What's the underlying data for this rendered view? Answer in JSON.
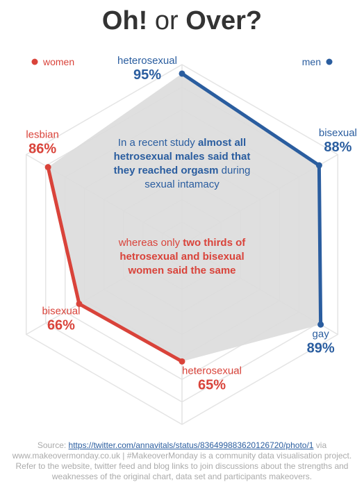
{
  "chart_data": {
    "type": "radar",
    "title": [
      "Oh!",
      "or",
      "Over?"
    ],
    "rlim": [
      0,
      100
    ],
    "rticks": [
      12.5,
      25,
      37.5,
      50,
      62.5,
      75,
      87.5,
      100
    ],
    "grid": true,
    "fill_color": "#dcdcdc",
    "series": [
      {
        "name": "men",
        "color": "#2a5d9f",
        "categories": [
          "heterosexual",
          "bisexual",
          "gay"
        ],
        "values": [
          95,
          88,
          89
        ],
        "value_labels": [
          "95%",
          "88%",
          "89%"
        ]
      },
      {
        "name": "women",
        "color": "#d9433a",
        "categories": [
          "heterosexual",
          "bisexual",
          "lesbian"
        ],
        "values": [
          65,
          66,
          86
        ],
        "value_labels": [
          "65%",
          "66%",
          "86%"
        ]
      }
    ],
    "annotations": [
      {
        "parts": [
          "In a recent study ",
          "almost all hetrosexual males said that they reached orgasm",
          " during sexual intamacy"
        ],
        "color": "#2a5d9f"
      },
      {
        "parts": [
          "whereas only ",
          "two thirds of hetrosexual and bisexual women said the same"
        ],
        "color": "#d9433a"
      }
    ],
    "source": [
      "Source: ",
      "https://twitter.com/annavitals/status/836499883620126720/photo/1",
      " via www.makeovermonday.co.uk | #MakeoverMonday is a community data visualisation project. Refer to the website, twitter feed and blog links to join discussions about the strengths and weaknesses of the original chart, data set and participants makeovers."
    ]
  }
}
